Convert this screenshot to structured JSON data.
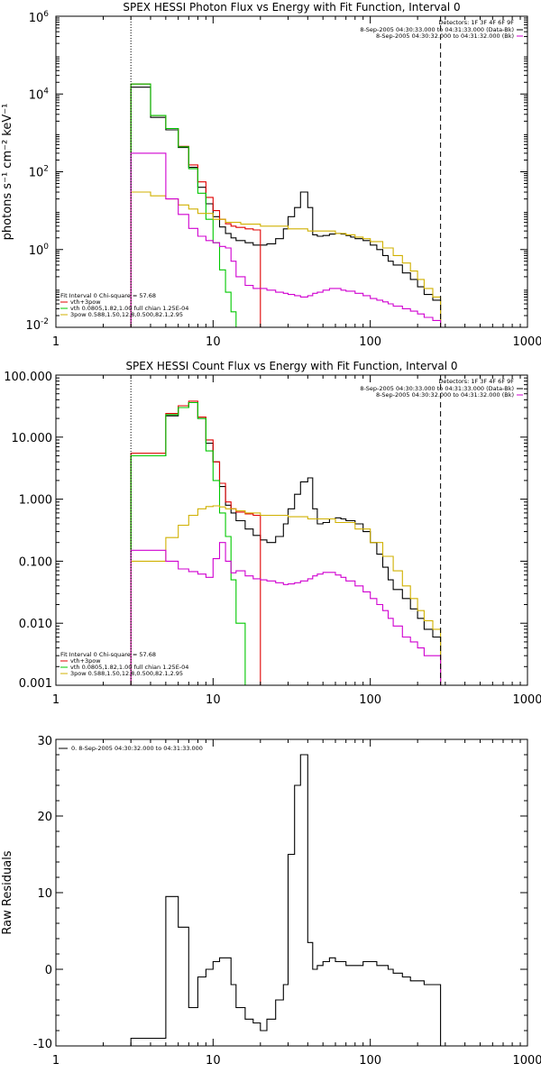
{
  "chart_data": [
    {
      "type": "line",
      "title": "SPEX HESSI Photon Flux vs Energy with Fit Function, Interval 0",
      "ylabel": "photons s⁻¹ cm⁻² keV⁻¹",
      "xscale": "log",
      "yscale": "log",
      "xlim": [
        1,
        1000
      ],
      "ylim": [
        0.01,
        1000000
      ],
      "xticks": [
        1,
        10,
        100,
        1000
      ],
      "xtick_labels": [
        "1",
        "10",
        "100",
        "1000"
      ],
      "yticks": [
        0.01,
        1,
        100,
        10000,
        1000000
      ],
      "ytick_labels": [
        {
          "base": "10",
          "exp": "-2"
        },
        {
          "base": "10",
          "exp": "0"
        },
        {
          "base": "10",
          "exp": "2"
        },
        {
          "base": "10",
          "exp": "4"
        },
        {
          "base": "10",
          "exp": "6"
        }
      ],
      "vlines": [
        {
          "x": 3,
          "style": "dotted"
        },
        {
          "x": 280,
          "style": "dashed"
        }
      ],
      "legend_top": {
        "title": "Detectors: 1F 3F 4F 6F 9F",
        "entries": [
          {
            "label": "8-Sep-2005 04:30:33.000 to 04:31:33.000 (Data-Bk)",
            "color": "#000000"
          },
          {
            "label": "8-Sep-2005 04:30:32.000 to 04:31:32.000 (Bk)",
            "color": "#d000d0"
          }
        ]
      },
      "legend_bottom": {
        "title": "Fit Interval 0   Chi-square = 57.68",
        "entries": [
          {
            "label": "vth+3pow",
            "color": "#e00000"
          },
          {
            "label": "vth 0.0805,1.82,1.00  full chian 1.25E-04",
            "color": "#00c800"
          },
          {
            "label": "3pow 0.588,1.50,12.8,0.500,82.1,2.95",
            "color": "#d0b000"
          }
        ]
      },
      "series": [
        {
          "name": "Data-Bk",
          "color": "#000000",
          "x": [
            3,
            3.5,
            4,
            5,
            6,
            7,
            8,
            9,
            10,
            11,
            12,
            13,
            14,
            16,
            18,
            20,
            22,
            25,
            28,
            30,
            33,
            36,
            40,
            43,
            46,
            50,
            55,
            60,
            65,
            70,
            75,
            80,
            90,
            100,
            110,
            120,
            130,
            140,
            160,
            180,
            200,
            220,
            250,
            280
          ],
          "values": [
            15000,
            15000,
            2500,
            1200,
            420,
            130,
            40,
            15,
            7,
            3.8,
            2.6,
            2,
            1.7,
            1.5,
            1.3,
            1.3,
            1.4,
            1.9,
            3.4,
            7,
            12,
            30,
            12,
            2.4,
            2.2,
            2.3,
            2.5,
            2.6,
            2.5,
            2.3,
            2.1,
            1.9,
            1.7,
            1.3,
            1,
            0.7,
            0.5,
            0.4,
            0.25,
            0.17,
            0.11,
            0.07,
            0.05,
            0.03
          ]
        },
        {
          "name": "vth+3pow",
          "color": "#e00000",
          "x": [
            3,
            3.5,
            4,
            5,
            6,
            7,
            8,
            9,
            10,
            11,
            12,
            13,
            14,
            16,
            18,
            20
          ],
          "values": [
            18000,
            18000,
            2800,
            1300,
            450,
            150,
            55,
            22,
            10,
            6,
            4.6,
            4,
            3.7,
            3.4,
            3.2,
            3
          ]
        },
        {
          "name": "vth",
          "color": "#00c800",
          "x": [
            3,
            3.5,
            4,
            5,
            6,
            7,
            8,
            9,
            10,
            11,
            12,
            13,
            14,
            16
          ],
          "values": [
            18000,
            18000,
            2800,
            1300,
            440,
            120,
            28,
            6,
            1.5,
            0.3,
            0.08,
            0.025,
            0.01,
            0.005
          ]
        },
        {
          "name": "3pow",
          "color": "#d0b000",
          "x": [
            3,
            4,
            5,
            6,
            7,
            8,
            10,
            12,
            15,
            20,
            30,
            40,
            60,
            70,
            80,
            90,
            100,
            120,
            140,
            160,
            180,
            200,
            220,
            250,
            280
          ],
          "values": [
            30,
            24,
            20,
            14,
            11,
            8.5,
            6,
            5,
            4.5,
            4,
            3.4,
            3,
            2.6,
            2.4,
            2.1,
            1.9,
            1.6,
            1.1,
            0.7,
            0.45,
            0.28,
            0.17,
            0.1,
            0.06,
            0.03
          ]
        },
        {
          "name": "Bk",
          "color": "#d000d0",
          "x": [
            3,
            4,
            5,
            6,
            7,
            8,
            9,
            10,
            11,
            12,
            13,
            14,
            16,
            18,
            20,
            22,
            25,
            28,
            30,
            33,
            36,
            40,
            43,
            46,
            50,
            55,
            60,
            65,
            70,
            80,
            90,
            100,
            110,
            120,
            130,
            140,
            160,
            180,
            200,
            220,
            250,
            280
          ],
          "values": [
            300,
            300,
            20,
            8,
            3.5,
            2.2,
            1.7,
            1.5,
            1.2,
            1.1,
            0.5,
            0.2,
            0.12,
            0.1,
            0.1,
            0.09,
            0.08,
            0.075,
            0.07,
            0.065,
            0.06,
            0.065,
            0.075,
            0.08,
            0.09,
            0.1,
            0.1,
            0.09,
            0.085,
            0.075,
            0.065,
            0.055,
            0.05,
            0.045,
            0.04,
            0.035,
            0.03,
            0.026,
            0.022,
            0.018,
            0.015,
            0.012
          ]
        }
      ]
    },
    {
      "type": "line",
      "title": "SPEX HESSI Count Flux vs Energy with Fit Function, Interval 0",
      "ylabel": "",
      "xscale": "log",
      "yscale": "log",
      "xlim": [
        1,
        1000
      ],
      "ylim": [
        0.001,
        100
      ],
      "xticks": [
        1,
        10,
        100,
        1000
      ],
      "xtick_labels": [
        "1",
        "10",
        "100",
        "1000"
      ],
      "yticks": [
        0.001,
        0.01,
        0.1,
        1,
        10,
        100
      ],
      "ytick_labels": [
        "0.001",
        "0.010",
        "0.100",
        "1.000",
        "10.000",
        "100.000"
      ],
      "vlines": [
        {
          "x": 3,
          "style": "dotted"
        },
        {
          "x": 280,
          "style": "dashed"
        }
      ],
      "legend_top": {
        "title": "Detectors: 1F 3F 4F 6F 9F",
        "entries": [
          {
            "label": "8-Sep-2005 04:30:33.000 to 04:31:33.000 (Data-Bk)",
            "color": "#000000"
          },
          {
            "label": "8-Sep-2005 04:30:32.000 to 04:31:32.000 (Bk)",
            "color": "#d000d0"
          }
        ]
      },
      "legend_bottom": {
        "title": "Fit Interval 0   Chi-square = 57.68",
        "entries": [
          {
            "label": "vth+3pow",
            "color": "#e00000"
          },
          {
            "label": "vth 0.0805,1.82,1.00  full chian 1.25E-04",
            "color": "#00c800"
          },
          {
            "label": "3pow 0.588,1.50,12.8,0.500,82.1,2.95",
            "color": "#d0b000"
          }
        ]
      },
      "series": [
        {
          "name": "Data-Bk",
          "color": "#000000",
          "x": [
            3,
            4,
            5,
            6,
            7,
            8,
            9,
            10,
            11,
            12,
            13,
            14,
            16,
            18,
            20,
            22,
            25,
            28,
            30,
            33,
            36,
            40,
            43,
            46,
            50,
            55,
            60,
            65,
            70,
            80,
            90,
            100,
            110,
            120,
            130,
            140,
            160,
            180,
            200,
            220,
            250,
            280
          ],
          "values": [
            5,
            5,
            22,
            30,
            36,
            20,
            8,
            4,
            1.6,
            0.8,
            0.6,
            0.45,
            0.33,
            0.26,
            0.22,
            0.2,
            0.25,
            0.4,
            0.7,
            1.2,
            1.9,
            2.2,
            0.7,
            0.4,
            0.42,
            0.48,
            0.5,
            0.48,
            0.45,
            0.4,
            0.3,
            0.2,
            0.13,
            0.08,
            0.05,
            0.035,
            0.025,
            0.017,
            0.012,
            0.008,
            0.006,
            0.006
          ]
        },
        {
          "name": "vth+3pow",
          "color": "#e00000",
          "x": [
            3,
            4,
            5,
            6,
            7,
            8,
            9,
            10,
            11,
            12,
            13,
            14,
            16,
            18,
            20
          ],
          "values": [
            5.5,
            5.5,
            24,
            32,
            38,
            21,
            9,
            4,
            1.8,
            0.9,
            0.7,
            0.62,
            0.58,
            0.55,
            0.52
          ]
        },
        {
          "name": "vth",
          "color": "#00c800",
          "x": [
            3,
            4,
            5,
            6,
            7,
            8,
            9,
            10,
            11,
            12,
            13,
            14,
            16
          ],
          "values": [
            5,
            5,
            23,
            30,
            36,
            20,
            6,
            2,
            0.6,
            0.25,
            0.05,
            0.01,
            0.002
          ]
        },
        {
          "name": "3pow",
          "color": "#d0b000",
          "x": [
            3,
            4,
            5,
            6,
            7,
            8,
            9,
            10,
            11,
            12,
            14,
            16,
            20,
            30,
            40,
            60,
            80,
            100,
            120,
            140,
            160,
            180,
            200,
            220,
            250,
            280
          ],
          "values": [
            0.1,
            0.1,
            0.24,
            0.38,
            0.55,
            0.7,
            0.76,
            0.78,
            0.75,
            0.7,
            0.65,
            0.6,
            0.55,
            0.52,
            0.48,
            0.42,
            0.33,
            0.2,
            0.12,
            0.07,
            0.04,
            0.025,
            0.016,
            0.011,
            0.008,
            0.005
          ]
        },
        {
          "name": "Bk",
          "color": "#d000d0",
          "x": [
            3,
            4,
            5,
            6,
            7,
            8,
            9,
            10,
            11,
            12,
            13,
            14,
            16,
            18,
            20,
            22,
            25,
            28,
            30,
            33,
            36,
            40,
            43,
            46,
            50,
            55,
            60,
            65,
            70,
            80,
            90,
            100,
            110,
            120,
            130,
            140,
            160,
            180,
            200,
            220,
            250,
            280
          ],
          "values": [
            0.15,
            0.15,
            0.1,
            0.075,
            0.068,
            0.062,
            0.055,
            0.11,
            0.2,
            0.1,
            0.065,
            0.07,
            0.058,
            0.052,
            0.05,
            0.048,
            0.045,
            0.042,
            0.043,
            0.045,
            0.048,
            0.052,
            0.058,
            0.062,
            0.066,
            0.066,
            0.06,
            0.055,
            0.048,
            0.04,
            0.032,
            0.025,
            0.02,
            0.016,
            0.012,
            0.009,
            0.006,
            0.005,
            0.004,
            0.003,
            0.003,
            0.002
          ]
        }
      ]
    },
    {
      "type": "line",
      "title": "",
      "ylabel": "Raw Residuals",
      "xscale": "log",
      "yscale": "linear",
      "xlim": [
        1,
        1000
      ],
      "ylim": [
        -10,
        30
      ],
      "xticks": [
        1,
        10,
        100,
        1000
      ],
      "xtick_labels": [
        "1",
        "10",
        "100",
        "1000"
      ],
      "yticks": [
        -10,
        0,
        10,
        20,
        30
      ],
      "ytick_labels": [
        "-10",
        "0",
        "10",
        "20",
        "30"
      ],
      "legend_top": {
        "title": "",
        "entries": [
          {
            "label": "0. 8-Sep-2005 04:30:32.000 to 04:31:33.000",
            "color": "#000000"
          }
        ]
      },
      "series": [
        {
          "name": "0. 8-Sep-2005 04:30:32.000 to 04:31:33.000",
          "color": "#000000",
          "x": [
            3,
            4,
            5,
            6,
            7,
            8,
            9,
            10,
            11,
            12,
            13,
            14,
            16,
            18,
            20,
            22,
            25,
            28,
            30,
            33,
            36,
            40,
            43,
            46,
            50,
            55,
            60,
            65,
            70,
            80,
            90,
            100,
            110,
            120,
            130,
            140,
            160,
            180,
            200,
            220,
            250,
            280
          ],
          "values": [
            -9,
            -9,
            9.5,
            5.5,
            -5,
            -1,
            0,
            1,
            1.5,
            1.5,
            -2,
            -5,
            -6.5,
            -7,
            -8,
            -6.5,
            -4,
            -2,
            15,
            24,
            28,
            3.5,
            0,
            0.5,
            1,
            1.5,
            1,
            1,
            0.5,
            0.5,
            1,
            1,
            0.5,
            0.5,
            0,
            -0.5,
            -1,
            -1.5,
            -1.5,
            -2,
            -2,
            -2
          ]
        }
      ]
    }
  ]
}
